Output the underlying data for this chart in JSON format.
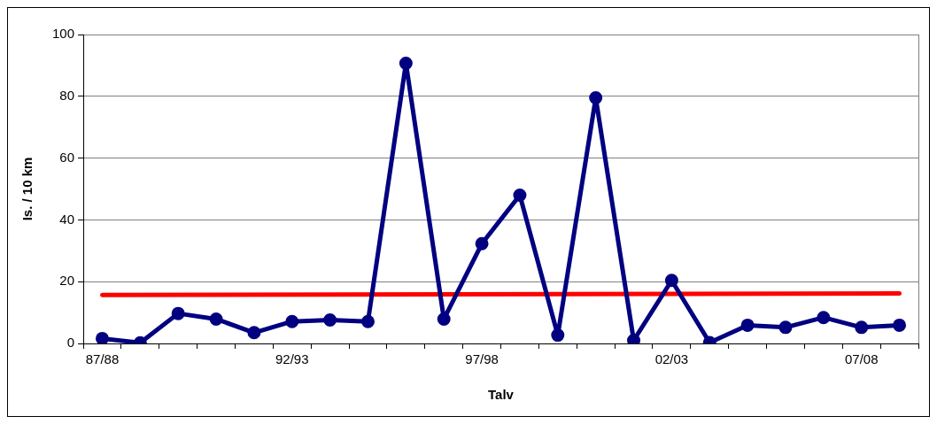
{
  "chart_data": {
    "type": "line",
    "xlabel": "Talv",
    "ylabel": "Is. / 10 km",
    "categories": [
      "87/88",
      null,
      null,
      null,
      null,
      "92/93",
      null,
      null,
      null,
      null,
      "97/98",
      null,
      null,
      null,
      null,
      "02/03",
      null,
      null,
      null,
      null,
      "07/08",
      null
    ],
    "series": [
      {
        "color": "#000080",
        "marker": "circle",
        "values": [
          1.6,
          0.2,
          9.7,
          7.9,
          3.5,
          7.1,
          7.6,
          7.1,
          90.7,
          7.9,
          32.3,
          48,
          2.7,
          79.5,
          1,
          20.4,
          0.3,
          5.9,
          5.2,
          8.4,
          5.2,
          5.9
        ]
      },
      {
        "color": "#ff0000",
        "marker": "none",
        "values": [
          15.7,
          null,
          null,
          null,
          null,
          null,
          null,
          null,
          null,
          null,
          null,
          null,
          null,
          null,
          null,
          null,
          null,
          null,
          null,
          null,
          null,
          16.2
        ]
      }
    ],
    "ylim": [
      0,
      100
    ],
    "yticks": [
      0,
      20,
      40,
      60,
      80,
      100
    ],
    "grid": "y",
    "legend": false
  }
}
